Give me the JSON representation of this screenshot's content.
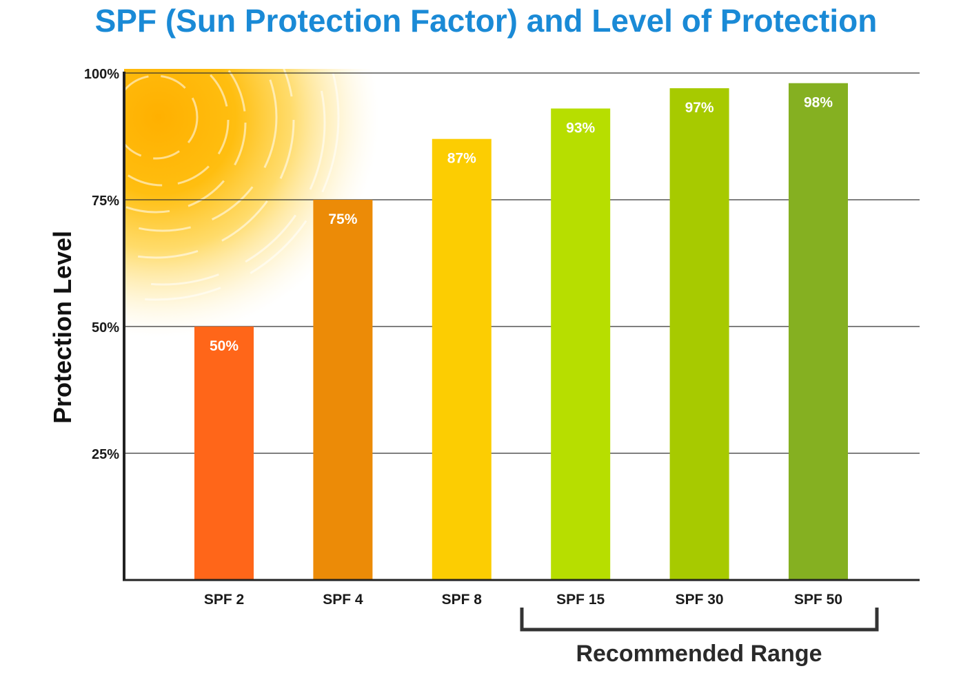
{
  "chart_data": {
    "type": "bar",
    "title": "SPF (Sun Protection Factor) and Level of Protection",
    "xlabel": "",
    "ylabel": "Protection Level",
    "ylim": [
      0,
      100
    ],
    "yticks": [
      25,
      50,
      75,
      100
    ],
    "ytick_labels": [
      "25%",
      "50%",
      "75%",
      "100%"
    ],
    "grid": true,
    "categories": [
      "SPF 2",
      "SPF 4",
      "SPF 8",
      "SPF 15",
      "SPF 30",
      "SPF 50"
    ],
    "values": [
      50,
      75,
      87,
      93,
      97,
      98
    ],
    "value_labels": [
      "50%",
      "75%",
      "87%",
      "93%",
      "97%",
      "98%"
    ],
    "bar_colors": [
      "#ff6619",
      "#ec8b07",
      "#fccd02",
      "#b7de00",
      "#a7ca00",
      "#85b021"
    ],
    "annotation": {
      "label": "Recommended Range",
      "categories": [
        "SPF 15",
        "SPF 30",
        "SPF 50"
      ]
    }
  },
  "colors": {
    "title": "#1a8ad6",
    "sun_core": "#ffb400",
    "axis": "#222222"
  }
}
